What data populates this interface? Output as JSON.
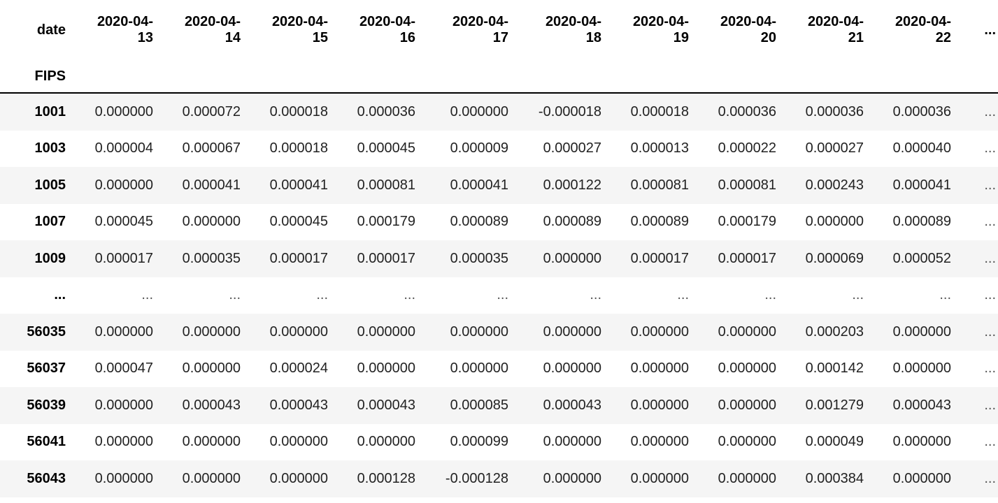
{
  "table": {
    "column_axis_label": "date",
    "index_label": "FIPS",
    "columns": [
      "2020-04-13",
      "2020-04-14",
      "2020-04-15",
      "2020-04-16",
      "2020-04-17",
      "2020-04-18",
      "2020-04-19",
      "2020-04-20",
      "2020-04-21",
      "2020-04-22"
    ],
    "more_columns": "...",
    "rows": [
      {
        "index": "1001",
        "values": [
          "0.000000",
          "0.000072",
          "0.000018",
          "0.000036",
          "0.000000",
          "-0.000018",
          "0.000018",
          "0.000036",
          "0.000036",
          "0.000036"
        ],
        "more": "..."
      },
      {
        "index": "1003",
        "values": [
          "0.000004",
          "0.000067",
          "0.000018",
          "0.000045",
          "0.000009",
          "0.000027",
          "0.000013",
          "0.000022",
          "0.000027",
          "0.000040"
        ],
        "more": "..."
      },
      {
        "index": "1005",
        "values": [
          "0.000000",
          "0.000041",
          "0.000041",
          "0.000081",
          "0.000041",
          "0.000122",
          "0.000081",
          "0.000081",
          "0.000243",
          "0.000041"
        ],
        "more": "..."
      },
      {
        "index": "1007",
        "values": [
          "0.000045",
          "0.000000",
          "0.000045",
          "0.000179",
          "0.000089",
          "0.000089",
          "0.000089",
          "0.000179",
          "0.000000",
          "0.000089"
        ],
        "more": "..."
      },
      {
        "index": "1009",
        "values": [
          "0.000017",
          "0.000035",
          "0.000017",
          "0.000017",
          "0.000035",
          "0.000000",
          "0.000017",
          "0.000017",
          "0.000069",
          "0.000052"
        ],
        "more": "..."
      },
      {
        "index": "...",
        "values": [
          "...",
          "...",
          "...",
          "...",
          "...",
          "...",
          "...",
          "...",
          "...",
          "..."
        ],
        "more": "..."
      },
      {
        "index": "56035",
        "values": [
          "0.000000",
          "0.000000",
          "0.000000",
          "0.000000",
          "0.000000",
          "0.000000",
          "0.000000",
          "0.000000",
          "0.000203",
          "0.000000"
        ],
        "more": "..."
      },
      {
        "index": "56037",
        "values": [
          "0.000047",
          "0.000000",
          "0.000024",
          "0.000000",
          "0.000000",
          "0.000000",
          "0.000000",
          "0.000000",
          "0.000142",
          "0.000000"
        ],
        "more": "..."
      },
      {
        "index": "56039",
        "values": [
          "0.000000",
          "0.000043",
          "0.000043",
          "0.000043",
          "0.000085",
          "0.000043",
          "0.000000",
          "0.000000",
          "0.001279",
          "0.000043"
        ],
        "more": "..."
      },
      {
        "index": "56041",
        "values": [
          "0.000000",
          "0.000000",
          "0.000000",
          "0.000000",
          "0.000099",
          "0.000000",
          "0.000000",
          "0.000000",
          "0.000049",
          "0.000000"
        ],
        "more": "..."
      },
      {
        "index": "56043",
        "values": [
          "0.000000",
          "0.000000",
          "0.000000",
          "0.000128",
          "-0.000128",
          "0.000000",
          "0.000000",
          "0.000000",
          "0.000384",
          "0.000000"
        ],
        "more": "..."
      }
    ]
  }
}
